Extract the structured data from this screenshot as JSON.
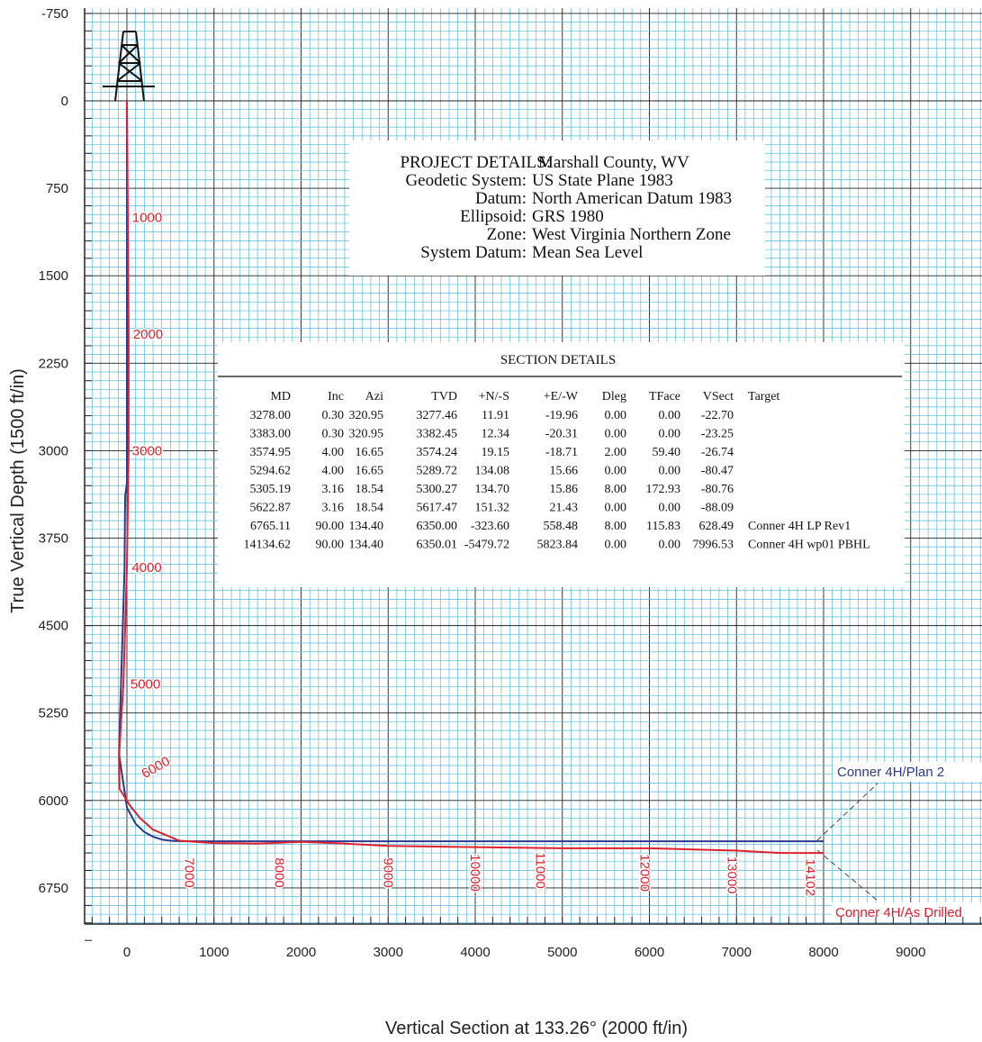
{
  "chart_data": {
    "type": "line",
    "xlabel": "Vertical Section at 133.26° (2000 ft/in)",
    "ylabel": "True Vertical Depth (1500 ft/in)",
    "xlim": [
      -500,
      9900
    ],
    "ylim": [
      7500,
      -1000
    ],
    "y_inverted": true,
    "x_ticks": [
      "0",
      "1000",
      "2000",
      "3000",
      "4000",
      "5000",
      "6000",
      "7000",
      "8000",
      "9000"
    ],
    "y_ticks": [
      "-750",
      "0",
      "750",
      "1500",
      "2250",
      "3000",
      "3750",
      "4500",
      "5250",
      "6000",
      "6750"
    ],
    "grid": true,
    "colors": {
      "plan": "#2b3a8f",
      "drilled": "#e0202c",
      "grid": "#57b9dc",
      "major": "#222222"
    },
    "series": [
      {
        "name": "Conner 4H/Plan 2",
        "x": [
          0,
          0,
          -20,
          -23,
          -27,
          -80,
          -81,
          -88,
          0,
          100,
          200,
          300,
          400,
          500,
          629,
          7997
        ],
        "y": [
          0,
          3277,
          3382,
          3574,
          4000,
          5290,
          5300,
          5617,
          6060,
          6200,
          6270,
          6310,
          6335,
          6345,
          6350,
          6350
        ]
      },
      {
        "name": "Conner 4H/As Drilled",
        "x": [
          0,
          10,
          20,
          20,
          0,
          -40,
          -90,
          -85,
          40,
          150,
          300,
          600,
          1000,
          1500,
          2000,
          2500,
          3000,
          4000,
          5000,
          6000,
          6500,
          7000,
          7500,
          8000
        ],
        "y": [
          0,
          1000,
          2000,
          3000,
          4000,
          5000,
          5600,
          5900,
          6050,
          6150,
          6250,
          6345,
          6365,
          6370,
          6355,
          6370,
          6390,
          6400,
          6410,
          6410,
          6420,
          6430,
          6450,
          6450
        ]
      }
    ],
    "md_labels": [
      {
        "text": "1000",
        "x": 60,
        "y": 1000,
        "rot": 0
      },
      {
        "text": "2000",
        "x": 70,
        "y": 2000,
        "rot": 0
      },
      {
        "text": "3000",
        "x": 60,
        "y": 3000,
        "rot": 0
      },
      {
        "text": "4000",
        "x": 55,
        "y": 4000,
        "rot": 0
      },
      {
        "text": "5000",
        "x": 40,
        "y": 5000,
        "rot": 0
      },
      {
        "text": "6000",
        "x": 180,
        "y": 5780,
        "rot": -30
      },
      {
        "text": "7000",
        "x": 720,
        "y": 6620,
        "rot": 90
      },
      {
        "text": "8000",
        "x": 1750,
        "y": 6620,
        "rot": 90
      },
      {
        "text": "9000",
        "x": 3000,
        "y": 6620,
        "rot": 90
      },
      {
        "text": "10000",
        "x": 4000,
        "y": 6620,
        "rot": 90
      },
      {
        "text": "11000",
        "x": 4750,
        "y": 6600,
        "rot": 90
      },
      {
        "text": "12000",
        "x": 5950,
        "y": 6620,
        "rot": 90
      },
      {
        "text": "13000",
        "x": 6950,
        "y": 6640,
        "rot": 90
      },
      {
        "text": "14102",
        "x": 7850,
        "y": 6660,
        "rot": 90
      }
    ],
    "annotations": [
      {
        "text": "Conner 4H/Plan 2",
        "color": "#2b3a8f"
      },
      {
        "text": "Conner 4H/As Drilled",
        "color": "#e0202c"
      }
    ]
  },
  "project": {
    "title_key": "PROJECT DETAILS:",
    "title_val": "Marshall County, WV",
    "rows": [
      {
        "key": "Geodetic System:",
        "val": "US State Plane 1983"
      },
      {
        "key": "Datum:",
        "val": "North American Datum 1983"
      },
      {
        "key": "Ellipsoid:",
        "val": "GRS 1980"
      },
      {
        "key": "Zone:",
        "val": "West Virginia Northern Zone"
      },
      {
        "key": "System Datum:",
        "val": "Mean Sea Level"
      }
    ]
  },
  "section": {
    "title": "SECTION DETAILS",
    "headers": [
      "MD",
      "Inc",
      "Azi",
      "TVD",
      "+N/-S",
      "+E/-W",
      "Dleg",
      "TFace",
      "VSect",
      "Target"
    ],
    "rows": [
      [
        "3278.00",
        "0.30",
        "320.95",
        "3277.46",
        "11.91",
        "-19.96",
        "0.00",
        "0.00",
        "-22.70",
        ""
      ],
      [
        "3383.00",
        "0.30",
        "320.95",
        "3382.45",
        "12.34",
        "-20.31",
        "0.00",
        "0.00",
        "-23.25",
        ""
      ],
      [
        "3574.95",
        "4.00",
        "16.65",
        "3574.24",
        "19.15",
        "-18.71",
        "2.00",
        "59.40",
        "-26.74",
        ""
      ],
      [
        "5294.62",
        "4.00",
        "16.65",
        "5289.72",
        "134.08",
        "15.66",
        "0.00",
        "0.00",
        "-80.47",
        ""
      ],
      [
        "5305.19",
        "3.16",
        "18.54",
        "5300.27",
        "134.70",
        "15.86",
        "8.00",
        "172.93",
        "-80.76",
        ""
      ],
      [
        "5622.87",
        "3.16",
        "18.54",
        "5617.47",
        "151.32",
        "21.43",
        "0.00",
        "0.00",
        "-88.09",
        ""
      ],
      [
        "6765.11",
        "90.00",
        "134.40",
        "6350.00",
        "-323.60",
        "558.48",
        "8.00",
        "115.83",
        "628.49",
        "Conner 4H LP Rev1"
      ],
      [
        "14134.62",
        "90.00",
        "134.40",
        "6350.01",
        "-5479.72",
        "5823.84",
        "0.00",
        "0.00",
        "7996.53",
        "Conner 4H wp01 PBHL"
      ]
    ]
  }
}
